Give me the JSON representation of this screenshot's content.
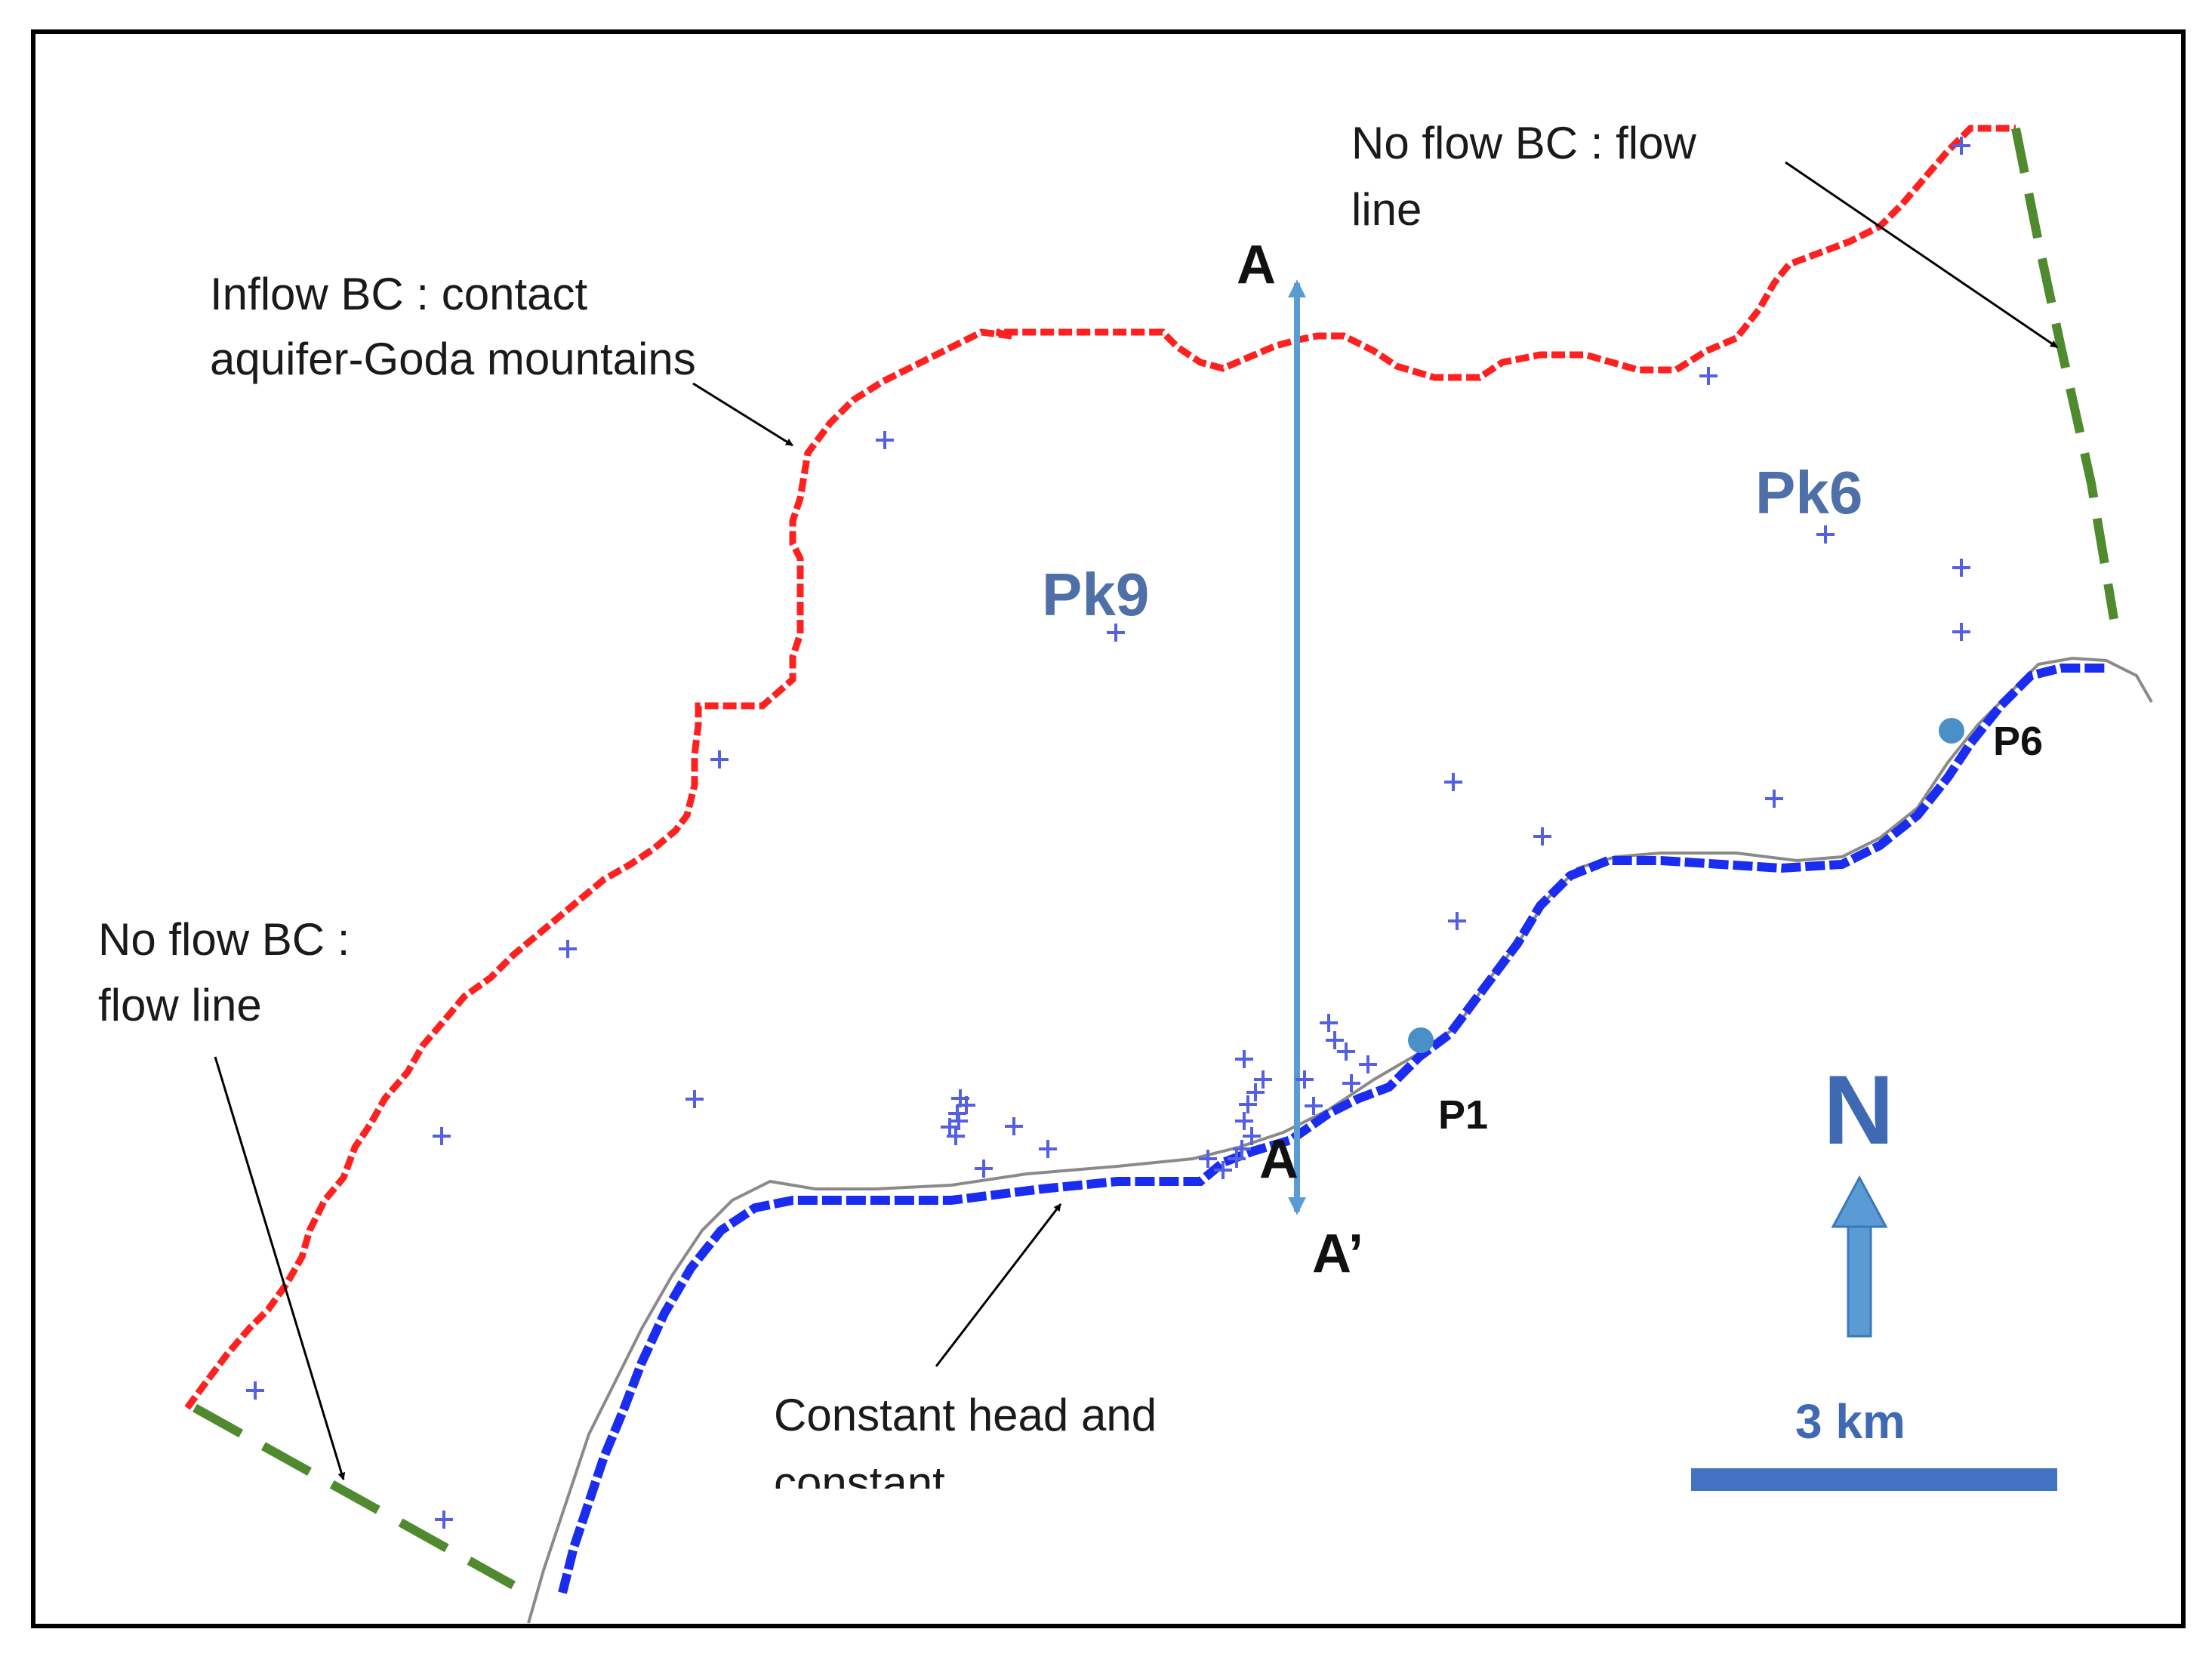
{
  "map": {
    "labels": {
      "inflow_bc_line1": "Inflow BC : contact",
      "inflow_bc_line2": "aquifer-Goda mountains",
      "no_flow_ne_line1": "No flow BC : flow",
      "no_flow_ne_line2": "line",
      "no_flow_sw_line1": "No flow BC :",
      "no_flow_sw_line2": "flow line",
      "constant_head_line1": "Constant head and",
      "constant_head_line2": "constant",
      "zone_pk9": "Pk9",
      "zone_pk6": "Pk6",
      "section_a_top": "A",
      "section_a_mid": "A",
      "section_a_prime": "A’",
      "point_p1": "P1",
      "point_p6": "P6",
      "north": "N",
      "scale": "3 km"
    },
    "colors": {
      "inflow_boundary": "#ff2020",
      "no_flow_boundary": "#4f8a2f",
      "constant_head_boundary": "#1a2cf0",
      "coastline": "#8a8a8a",
      "cross_section": "#5b9bd5",
      "wells": "#5560e0",
      "piezometers": "#4a90c8",
      "north_arrow": "#5b9bd5",
      "scale_bar": "#4472c4",
      "frame": "#000000"
    }
  }
}
